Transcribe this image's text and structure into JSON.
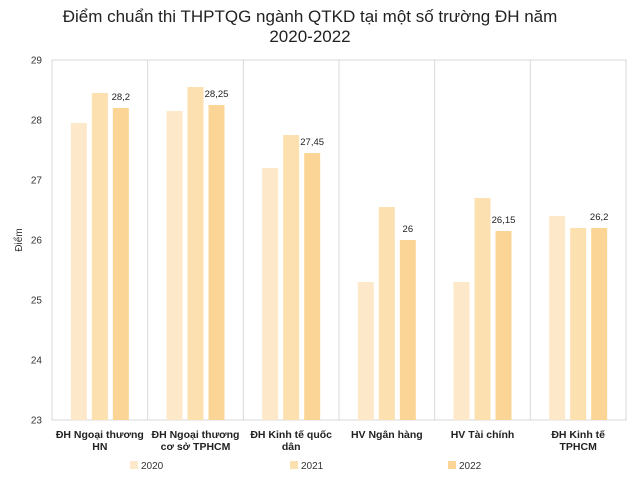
{
  "chart_data": {
    "type": "bar",
    "title": "Điểm chuẩn thi THPTQG ngành QTKD tại một số trường ĐH năm",
    "subtitle": "2020-2022",
    "ylabel": "Điểm",
    "xlabel": "",
    "ylim": [
      23,
      29
    ],
    "yticks": [
      "23",
      "24",
      "25",
      "26",
      "27",
      "28",
      "29"
    ],
    "grid": "vertical category separators",
    "legend_position": "bottom",
    "categories": [
      [
        "ĐH Ngoại thương",
        "HN"
      ],
      [
        "ĐH Ngoại thương",
        "cơ sở TPHCM"
      ],
      [
        "ĐH Kinh tế quốc",
        "dân"
      ],
      [
        "HV Ngân hàng"
      ],
      [
        "HV Tài chính"
      ],
      [
        "ĐH Kinh tế",
        "TPHCM"
      ]
    ],
    "series": [
      {
        "name": "2020",
        "color": "#fde9c9",
        "values": [
          27.95,
          28.15,
          27.2,
          25.3,
          25.3,
          26.4
        ],
        "labels": [
          "",
          "",
          "",
          "",
          "",
          ""
        ]
      },
      {
        "name": "2021",
        "color": "#fce0b0",
        "values": [
          28.45,
          28.55,
          27.75,
          26.55,
          26.7,
          26.2
        ],
        "labels": [
          "",
          "",
          "",
          "",
          "",
          ""
        ]
      },
      {
        "name": "2022",
        "color": "#fbd596",
        "values": [
          28.2,
          28.25,
          27.45,
          26.0,
          26.15,
          26.2
        ],
        "labels": [
          "28,2",
          "28,25",
          "27,45",
          "26",
          "26,15",
          "26,2"
        ]
      }
    ]
  }
}
